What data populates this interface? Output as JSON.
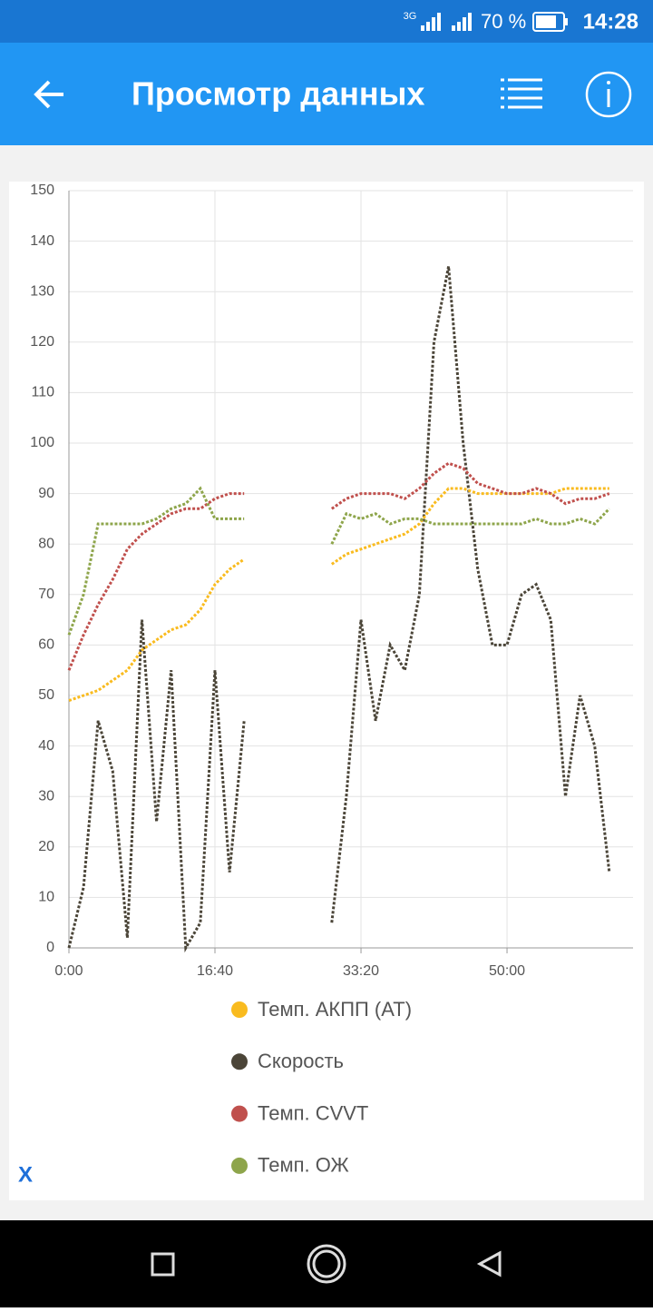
{
  "status_bar": {
    "network": "3G",
    "battery": "70 %",
    "time": "14:28"
  },
  "app_bar": {
    "title": "Просмотр данных"
  },
  "close_button": "X",
  "chart_data": {
    "type": "line",
    "x": [
      0,
      100,
      200,
      300,
      400,
      500,
      600,
      700,
      800,
      900,
      1000,
      1100,
      1200,
      1300,
      1400,
      1500,
      1600,
      1700,
      1800,
      1900,
      2000,
      2100,
      2200,
      2300,
      2400,
      2500,
      2600,
      2700,
      2800,
      2900,
      3000,
      3100,
      3200,
      3300,
      3400,
      3500,
      3600,
      3700
    ],
    "series": [
      {
        "name": "Темп. АКПП (AT)",
        "color": "#f9bb1f",
        "values": [
          49,
          50,
          51,
          53,
          55,
          59,
          61,
          63,
          64,
          67,
          72,
          75,
          77,
          null,
          null,
          null,
          null,
          null,
          76,
          78,
          79,
          80,
          81,
          82,
          84,
          88,
          91,
          91,
          90,
          90,
          90,
          90,
          90,
          90,
          91,
          91,
          91,
          91
        ]
      },
      {
        "name": "Скорость",
        "color": "#4b4538",
        "values": [
          0,
          12,
          45,
          35,
          2,
          65,
          25,
          55,
          0,
          5,
          55,
          15,
          45,
          null,
          null,
          null,
          null,
          null,
          5,
          30,
          65,
          45,
          60,
          55,
          70,
          120,
          135,
          100,
          75,
          60,
          60,
          70,
          72,
          65,
          30,
          50,
          40,
          15
        ]
      },
      {
        "name": "Темп. CVVT",
        "color": "#c0504d",
        "values": [
          55,
          62,
          68,
          73,
          79,
          82,
          84,
          86,
          87,
          87,
          89,
          90,
          90,
          null,
          null,
          null,
          null,
          null,
          87,
          89,
          90,
          90,
          90,
          89,
          91,
          94,
          96,
          95,
          92,
          91,
          90,
          90,
          91,
          90,
          88,
          89,
          89,
          90
        ]
      },
      {
        "name": "Темп. ОЖ",
        "color": "#8ea54b",
        "values": [
          62,
          70,
          84,
          84,
          84,
          84,
          85,
          87,
          88,
          91,
          85,
          85,
          85,
          null,
          null,
          null,
          null,
          null,
          80,
          86,
          85,
          86,
          84,
          85,
          85,
          84,
          84,
          84,
          84,
          84,
          84,
          84,
          85,
          84,
          84,
          85,
          84,
          87
        ]
      }
    ],
    "xlim": [
      0,
      3863
    ],
    "xticks": [
      {
        "value": 0,
        "label": "0:00"
      },
      {
        "value": 1000,
        "label": "16:40"
      },
      {
        "value": 2000,
        "label": "33:20"
      },
      {
        "value": 3000,
        "label": "50:00"
      }
    ],
    "ylim": [
      0,
      150
    ],
    "yticks": [
      0,
      10,
      20,
      30,
      40,
      50,
      60,
      70,
      80,
      90,
      100,
      110,
      120,
      130,
      140,
      150
    ],
    "grid": true
  }
}
